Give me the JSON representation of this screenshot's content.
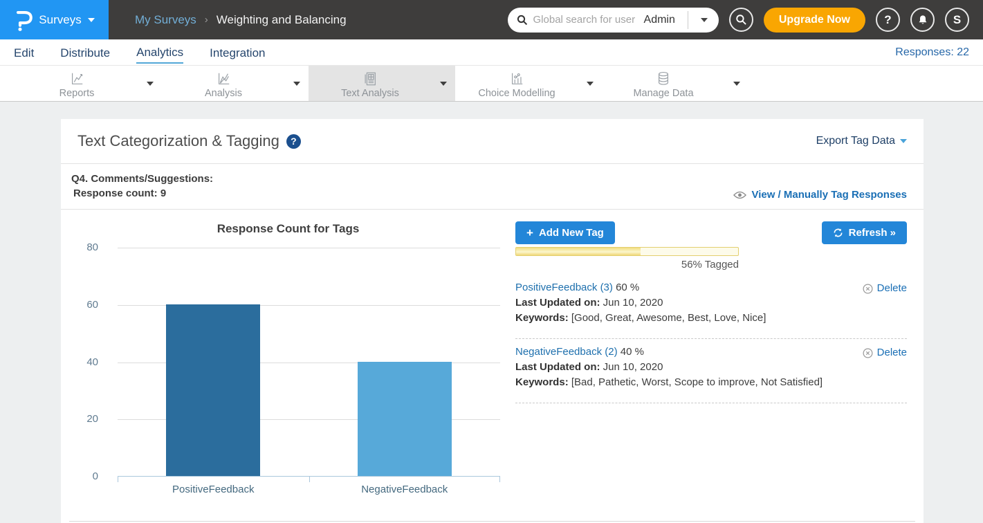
{
  "header": {
    "brand_label": "Surveys",
    "breadcrumb": {
      "parent": "My Surveys",
      "separator": "›",
      "current": "Weighting and Balancing"
    },
    "search": {
      "placeholder": "Global search for user",
      "scope": "Admin"
    },
    "upgrade_label": "Upgrade Now",
    "help_glyph": "?",
    "avatar_initial": "S"
  },
  "nav": {
    "items": {
      "0": "Edit",
      "1": "Distribute",
      "2": "Analytics",
      "3": "Integration"
    },
    "active": "Analytics",
    "responses_label": "Responses: 22"
  },
  "tabs": {
    "0": {
      "label": "Reports",
      "icon": "line-chart-icon"
    },
    "1": {
      "label": "Analysis",
      "icon": "multi-line-chart-icon"
    },
    "2": {
      "label": "Text Analysis",
      "icon": "document-grid-icon",
      "active": true
    },
    "3": {
      "label": "Choice Modelling",
      "icon": "scatter-chart-icon"
    },
    "4": {
      "label": "Manage Data",
      "icon": "database-icon"
    }
  },
  "panel": {
    "title": "Text Categorization & Tagging",
    "help_glyph": "?",
    "export_label": "Export Tag Data",
    "question_label": "Q4. Comments/Suggestions:",
    "response_count_label": "Response count: 9",
    "view_tag_label": "View / Manually Tag Responses",
    "add_tag_label": "Add New Tag",
    "plus_glyph": "+",
    "refresh_label": "Refresh »",
    "tagged_label": "56% Tagged",
    "tagged_percent": 56,
    "tags": {
      "0": {
        "name": "PositiveFeedback (3)",
        "percent": "60 %",
        "updated_label": "Last Updated on:",
        "updated": "Jun 10, 2020",
        "keywords_label": "Keywords:",
        "keywords": "[Good, Great, Awesome, Best, Love, Nice]",
        "delete_label": "Delete"
      },
      "1": {
        "name": "NegativeFeedback (2)",
        "percent": "40 %",
        "updated_label": "Last Updated on:",
        "updated": "Jun 10, 2020",
        "keywords_label": "Keywords:",
        "keywords": "[Bad, Pathetic, Worst, Scope to improve, Not Satisfied]",
        "delete_label": "Delete"
      }
    }
  },
  "chart_data": {
    "type": "bar",
    "title": "Response Count for Tags",
    "categories": [
      "PositiveFeedback",
      "NegativeFeedback"
    ],
    "values": [
      60,
      40
    ],
    "xlabel": "",
    "ylabel": "",
    "ylim": [
      0,
      80
    ],
    "yticks": [
      0,
      20,
      40,
      60,
      80
    ],
    "grid": true,
    "legend": "none",
    "bar_colors": [
      "#2b6d9d",
      "#57a9d9"
    ]
  },
  "colors": {
    "brand_blue": "#2196f3",
    "header_dark": "#3e3d3c",
    "accent_blue": "#2386d8",
    "link_blue": "#1a6fb5",
    "nav_navy": "#26466d",
    "upgrade_orange": "#f9a602",
    "progress_yellow": "#f2dd7e",
    "bar_dark": "#2b6d9d",
    "bar_light": "#57a9d9"
  }
}
